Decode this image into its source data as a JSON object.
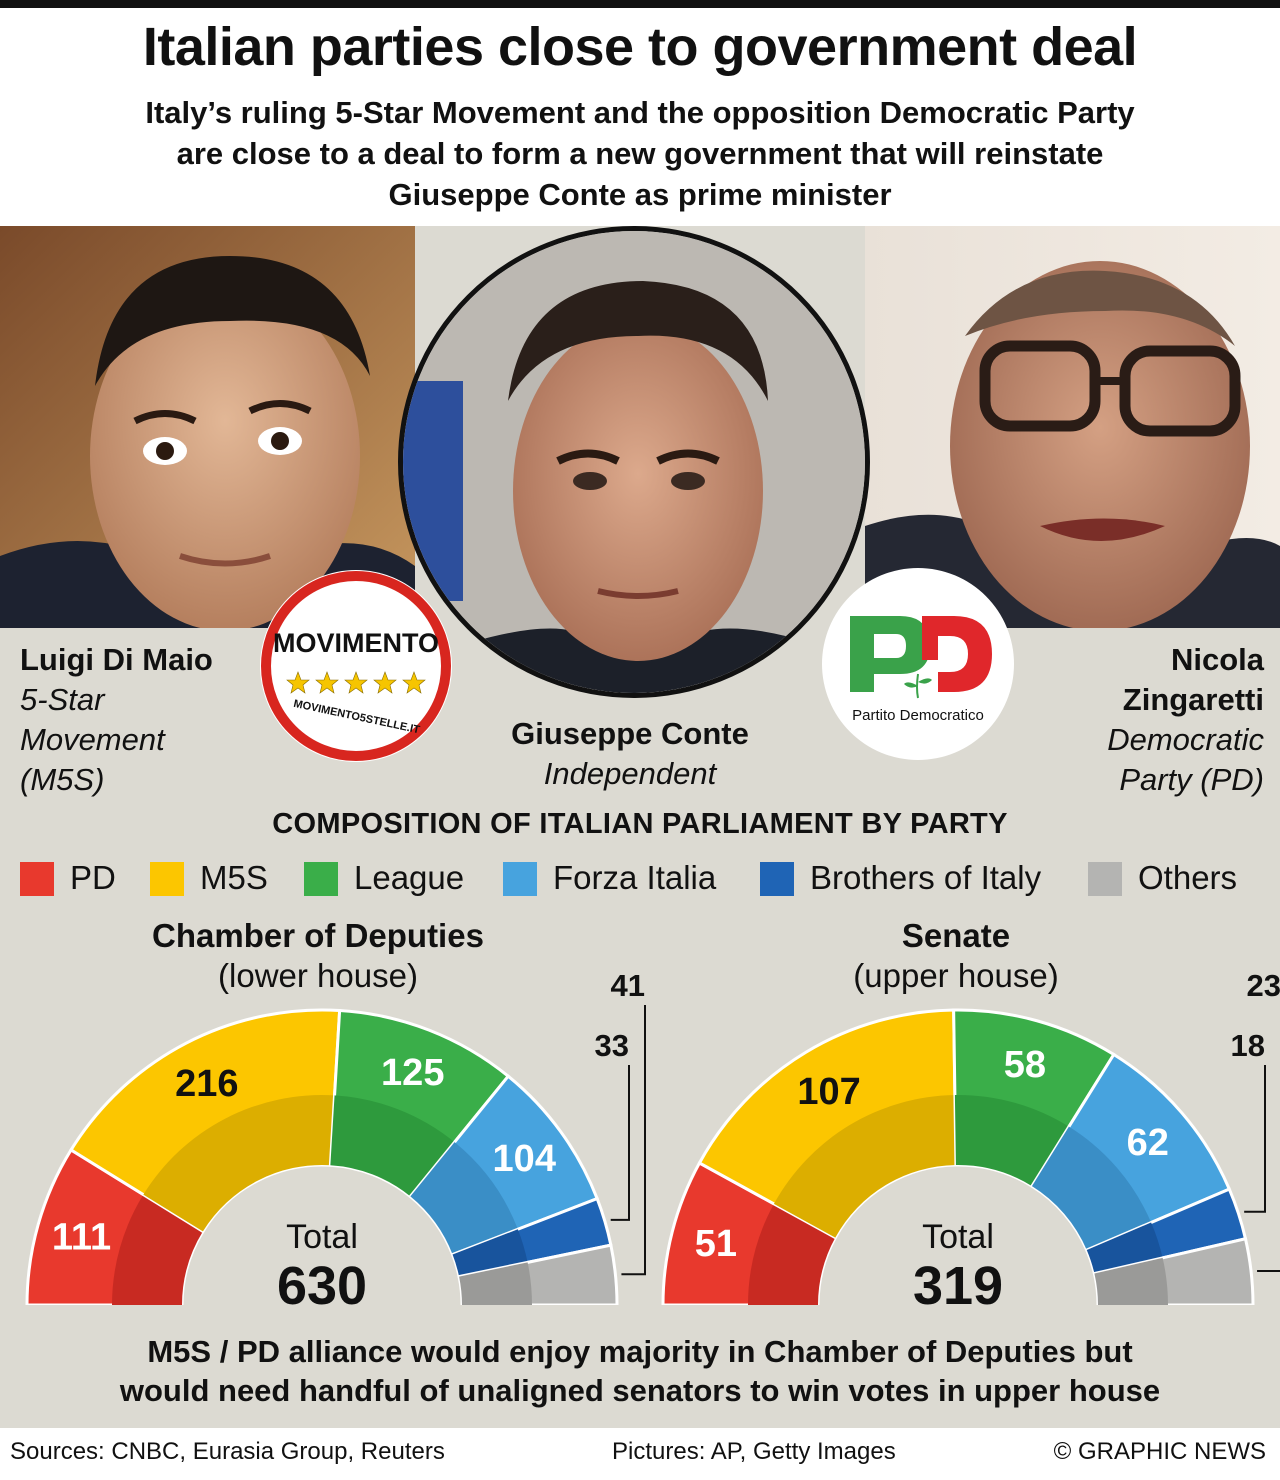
{
  "header": {
    "title": "Italian parties close to government deal",
    "subtitle_lines": [
      "Italy’s ruling 5-Star Movement and the opposition Democratic Party",
      "are close to a deal to form a new government that will reinstate",
      "Giuseppe Conte as prime minister"
    ]
  },
  "people": {
    "left": {
      "name": "Luigi Di Maio",
      "party_lines": [
        "5-Star",
        "Movement",
        "(M5S)"
      ]
    },
    "center": {
      "name": "Giuseppe Conte",
      "party": "Independent"
    },
    "right": {
      "name_lines": [
        "Nicola",
        "Zingaretti"
      ],
      "party_lines": [
        "Democratic",
        "Party (PD)"
      ]
    }
  },
  "logos": {
    "m5s": {
      "word": "MOVIMENTO",
      "url": "MOVIMENTO5STELLE.IT"
    },
    "pd": {
      "text": "Partito Democratico"
    }
  },
  "composition_title": "COMPOSITION OF ITALIAN PARLIAMENT BY PARTY",
  "colors": {
    "PD": "#e8392d",
    "M5S": "#fcc600",
    "League": "#3aae49",
    "Forza Italia": "#47a3de",
    "Brothers of Italy": "#1f64b5",
    "Others": "#b4b4b2"
  },
  "chart_data": [
    {
      "type": "pie",
      "title": "Chamber of Deputies",
      "subtitle": "(lower house)",
      "categories": [
        "PD",
        "M5S",
        "League",
        "Forza Italia",
        "Brothers of Italy",
        "Others"
      ],
      "values": [
        111,
        216,
        125,
        104,
        33,
        41
      ],
      "total_label": "Total",
      "total": 630,
      "legend": "top"
    },
    {
      "type": "pie",
      "title": "Senate",
      "subtitle": "(upper house)",
      "categories": [
        "PD",
        "M5S",
        "League",
        "Forza Italia",
        "Brothers of Italy",
        "Others"
      ],
      "values": [
        51,
        107,
        58,
        62,
        18,
        23
      ],
      "total_label": "Total",
      "total": 319,
      "legend": "top"
    }
  ],
  "conclusion_lines": [
    "M5S / PD alliance would enjoy majority in Chamber of Deputies but",
    "would need handful of unaligned senators to win votes in upper house"
  ],
  "footer": {
    "sources": "Sources: CNBC, Eurasia Group, Reuters",
    "pictures": "Pictures: AP, Getty Images",
    "credit": "© GRAPHIC NEWS"
  }
}
